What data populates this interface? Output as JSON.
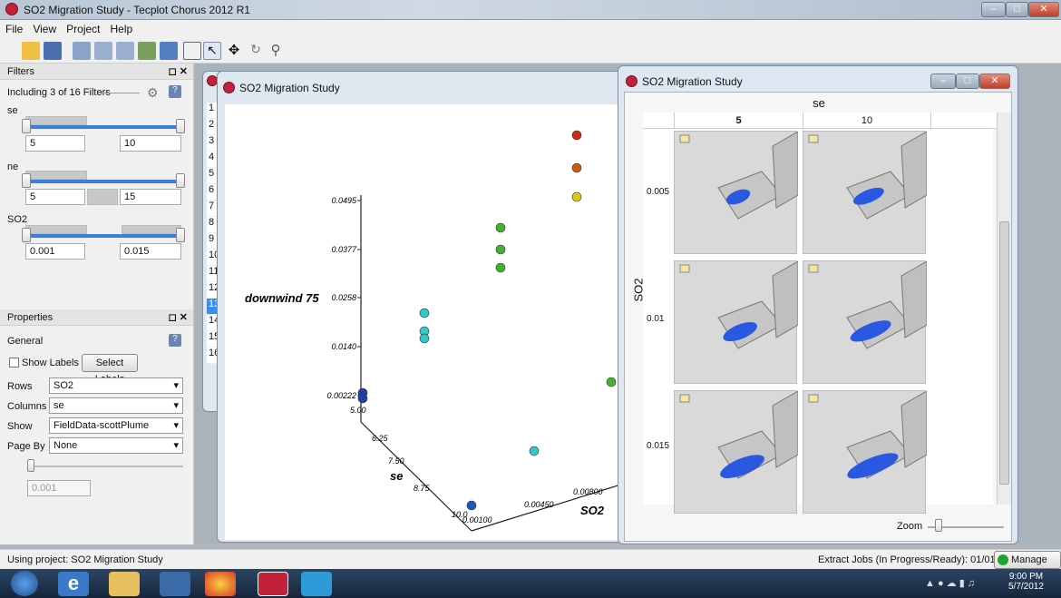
{
  "window": {
    "title": "SO2 Migration Study - Tecplot Chorus 2012 R1"
  },
  "menu": [
    "File",
    "View",
    "Project",
    "Help"
  ],
  "filters": {
    "title": "Filters",
    "summary": "Including 3 of 16 Filters",
    "groups": [
      {
        "label": "se",
        "min": "5",
        "max": "10"
      },
      {
        "label": "ne",
        "min": "5",
        "max": "15"
      },
      {
        "label": "SO2",
        "min": "0.001",
        "max": "0.015"
      }
    ]
  },
  "properties": {
    "title": "Properties",
    "section": "General",
    "show_labels": "Show Labels",
    "select_labels": "Select Labels",
    "rows_label": "Rows",
    "rows_value": "SO2",
    "columns_label": "Columns",
    "columns_value": "se",
    "show_label": "Show",
    "show_value": "FieldData-scottPlume",
    "pageby_label": "Page By",
    "pageby_value": "None",
    "slider_value": "0.001"
  },
  "table_rows": [
    "1",
    "2",
    "3",
    "4",
    "5",
    "6",
    "7",
    "8",
    "9",
    "10",
    "11",
    "12",
    "13",
    "14",
    "15",
    "16"
  ],
  "scatter_window": {
    "title": "SO2 Migration Study"
  },
  "chart_data": {
    "type": "scatter",
    "zlabel": "downwind 75",
    "xlabel": "se",
    "ylabel": "SO2",
    "z_ticks": [
      "0.0495",
      "0.0377",
      "0.0258",
      "0.0140",
      "0.00222"
    ],
    "se_ticks": [
      "5.00",
      "6.25",
      "7.50",
      "8.75",
      "10.0"
    ],
    "so2_ticks": [
      "0.00100",
      "0.00450",
      "0.00800"
    ],
    "points": [
      {
        "color": "#cc2a10"
      },
      {
        "color": "#cc5a10"
      },
      {
        "color": "#d8c818"
      },
      {
        "color": "#44b030"
      },
      {
        "color": "#44b030"
      },
      {
        "color": "#44b030"
      },
      {
        "color": "#30c8c8"
      },
      {
        "color": "#30c8c8"
      },
      {
        "color": "#30c8c8"
      },
      {
        "color": "#30c8c8"
      },
      {
        "color": "#44b030"
      },
      {
        "color": "#1f55c0"
      },
      {
        "color": "#1f3fa8"
      },
      {
        "color": "#1f3fa8"
      }
    ]
  },
  "matrix_window": {
    "title": "SO2 Migration Study",
    "col_axis": "se",
    "row_axis": "SO2",
    "columns": [
      "5",
      "10"
    ],
    "rows": [
      "0.005",
      "0.01",
      "0.015"
    ],
    "zoom_label": "Zoom"
  },
  "status": {
    "left": "Using project: SO2 Migration Study",
    "right": "Extract Jobs (In Progress/Ready): 01/01",
    "manage": "Manage Job"
  },
  "clock": {
    "time": "9:00 PM",
    "date": "5/7/2012"
  }
}
